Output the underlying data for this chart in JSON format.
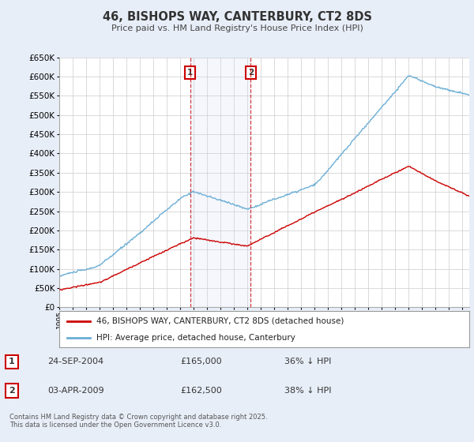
{
  "title": "46, BISHOPS WAY, CANTERBURY, CT2 8DS",
  "subtitle": "Price paid vs. HM Land Registry's House Price Index (HPI)",
  "ylim": [
    0,
    650000
  ],
  "yticks": [
    0,
    50000,
    100000,
    150000,
    200000,
    250000,
    300000,
    350000,
    400000,
    450000,
    500000,
    550000,
    600000,
    650000
  ],
  "ytick_labels": [
    "£0",
    "£50K",
    "£100K",
    "£150K",
    "£200K",
    "£250K",
    "£300K",
    "£350K",
    "£400K",
    "£450K",
    "£500K",
    "£550K",
    "£600K",
    "£650K"
  ],
  "hpi_color": "#6baed6",
  "price_color": "#cc0000",
  "marker1_date": 2004.73,
  "marker2_date": 2009.25,
  "marker1_label": "1",
  "marker2_label": "2",
  "legend_line1": "46, BISHOPS WAY, CANTERBURY, CT2 8DS (detached house)",
  "legend_line2": "HPI: Average price, detached house, Canterbury",
  "sale1_label": "1",
  "sale1_date": "24-SEP-2004",
  "sale1_price": "£165,000",
  "sale1_hpi": "36% ↓ HPI",
  "sale2_label": "2",
  "sale2_date": "03-APR-2009",
  "sale2_price": "£162,500",
  "sale2_hpi": "38% ↓ HPI",
  "footer": "Contains HM Land Registry data © Crown copyright and database right 2025.\nThis data is licensed under the Open Government Licence v3.0.",
  "background_color": "#e8eef8",
  "plot_bg_color": "#ffffff",
  "grid_color": "#cccccc",
  "xlim_start": 1995,
  "xlim_end": 2025.5
}
